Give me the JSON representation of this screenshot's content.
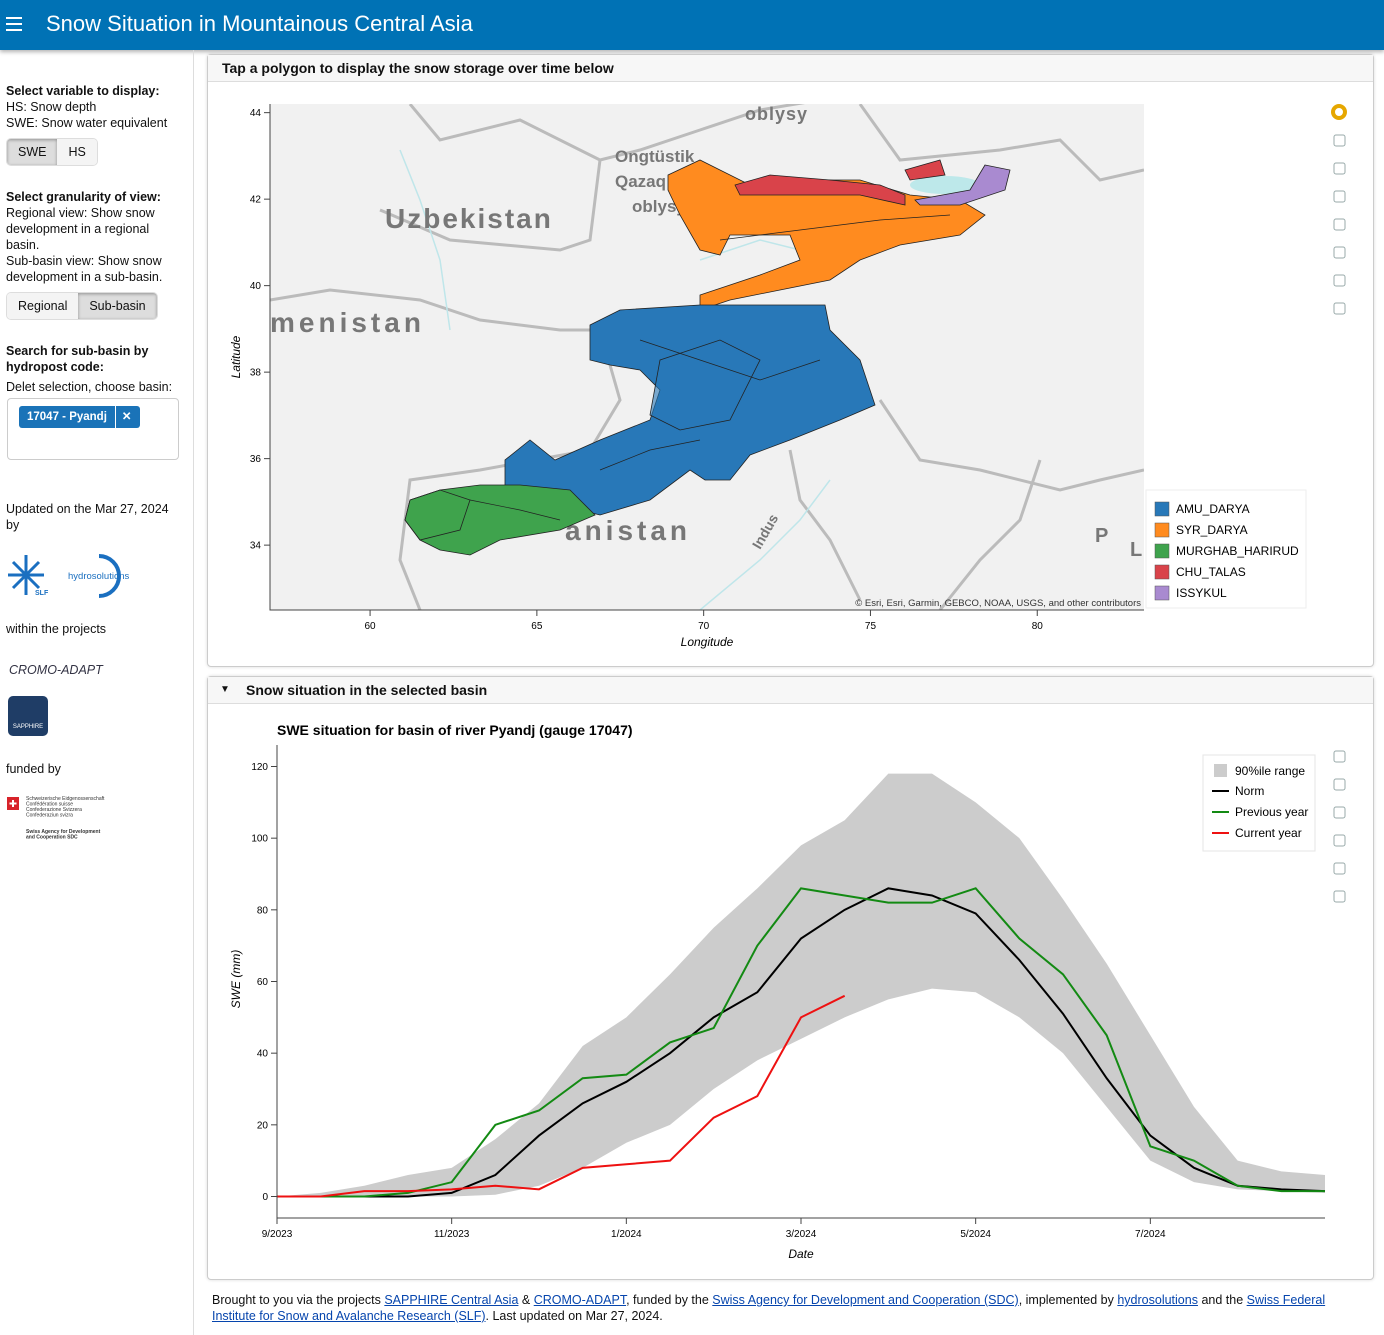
{
  "header": {
    "title": "Snow Situation in Mountainous Central Asia"
  },
  "sidebar": {
    "variable_heading": "Select variable to display:",
    "variable_help": [
      "HS: Snow depth",
      "SWE: Snow water equivalent"
    ],
    "variable_buttons": [
      "SWE",
      "HS"
    ],
    "variable_active": 0,
    "granularity_heading": "Select granularity of view:",
    "granularity_help": [
      "Regional view: Show snow development in a regional basin.",
      "Sub-basin view: Show snow development in a sub-basin."
    ],
    "granularity_buttons": [
      "Regional",
      "Sub-basin"
    ],
    "granularity_active": 1,
    "search_heading": "Search for sub-basin by hydropost code:",
    "search_help": "Delet selection, choose basin:",
    "search_chip": "17047 - Pyandj",
    "updated": "Updated on the Mar 27, 2024 by",
    "slf": "SLF",
    "hydrosolutions": "hydrosolutions",
    "projects_label": "within the projects",
    "cromo": "CROMO-ADAPT",
    "sapphire": "SAPPHIRE",
    "funded_label": "funded by",
    "swiss_lines": [
      "Schweizerische Eidgenossenschaft",
      "Confédération suisse",
      "Confederazione Svizzera",
      "Confederaziun svizra"
    ],
    "sdc_lines": [
      "Swiss Agency for Development",
      "and Cooperation SDC"
    ]
  },
  "map": {
    "panel_title": "Tap a polygon to display the snow storage over time below",
    "xlabel": "Longitude",
    "ylabel": "Latitude",
    "xlim": [
      57,
      83.2
    ],
    "xticks": [
      60,
      65,
      70,
      75,
      80
    ],
    "ylim": [
      32.5,
      44.2
    ],
    "yticks": [
      34,
      36,
      38,
      40,
      42,
      44
    ],
    "basemap_labels": [
      "Uzbekistan",
      "menistan",
      "oblysy",
      "Ongtüstik",
      "Qazaq",
      "oblysy",
      "anistan",
      "Indus",
      "P",
      "L"
    ],
    "attribution": "© Esri, Esri, Garmin, GEBCO, NOAA, USGS, and other contributors",
    "legend": [
      {
        "name": "AMU_DARYA",
        "color": "#2878b8"
      },
      {
        "name": "SYR_DARYA",
        "color": "#ff8b1f"
      },
      {
        "name": "MURGHAB_HARIRUD",
        "color": "#3fa34d"
      },
      {
        "name": "CHU_TALAS",
        "color": "#d9434a"
      },
      {
        "name": "ISSYKUL",
        "color": "#a98ad0"
      }
    ]
  },
  "chart_panel_title": "Snow situation in the selected basin",
  "chart_data": {
    "type": "line",
    "title": "SWE situation for basin of river Pyandj (gauge 17047)",
    "xlabel": "Date",
    "ylabel": "SWE (mm)",
    "x": [
      0,
      0.5,
      1,
      1.5,
      2,
      2.5,
      3,
      3.5,
      4,
      4.5,
      5,
      5.5,
      6,
      6.5,
      7,
      7.5,
      8,
      8.5,
      9,
      9.5,
      10,
      10.5,
      11,
      11.5,
      12
    ],
    "xlim": [
      0,
      12
    ],
    "xticks": [
      {
        "value": 0,
        "label": "9/2023"
      },
      {
        "value": 2,
        "label": "11/2023"
      },
      {
        "value": 4,
        "label": "1/2024"
      },
      {
        "value": 6,
        "label": "3/2024"
      },
      {
        "value": 8,
        "label": "5/2024"
      },
      {
        "value": 10,
        "label": "7/2024"
      }
    ],
    "ylim": [
      -6,
      126
    ],
    "yticks": [
      0,
      20,
      40,
      60,
      80,
      100,
      120
    ],
    "band": {
      "name": "90%ile range",
      "color": "#cccccc",
      "lower": [
        0,
        0,
        0,
        0,
        0,
        0.5,
        3,
        8,
        15,
        20,
        30,
        38,
        44,
        50,
        55,
        58,
        57,
        50,
        40,
        25,
        10,
        4,
        2,
        1.5,
        1
      ],
      "upper": [
        0,
        1,
        3,
        6,
        8,
        16,
        26,
        42,
        50,
        62,
        75,
        86,
        98,
        105,
        118,
        118,
        110,
        100,
        83,
        65,
        45,
        25,
        10,
        7,
        6
      ]
    },
    "series": [
      {
        "name": "Norm",
        "color": "#000000",
        "values": [
          0,
          0,
          0,
          0,
          1,
          6,
          17,
          26,
          32,
          40,
          50,
          57,
          72,
          80,
          86,
          84,
          79,
          66,
          51,
          33,
          17,
          8,
          3,
          2,
          1.5
        ]
      },
      {
        "name": "Previous year",
        "color": "#138a13",
        "values": [
          0,
          0,
          0,
          1,
          4,
          20,
          24,
          33,
          34,
          43,
          47,
          70,
          86,
          84,
          82,
          82,
          86,
          72,
          62,
          45,
          14,
          10,
          3,
          1.5,
          1.5
        ]
      },
      {
        "name": "Current year",
        "color": "#ee1111",
        "values": [
          0,
          0,
          1.5,
          1.5,
          2,
          3,
          2,
          8,
          9,
          10,
          22,
          28,
          50,
          56,
          null,
          null,
          null,
          null,
          null,
          null,
          null,
          null,
          null,
          null,
          null
        ]
      }
    ]
  },
  "footer": {
    "parts": [
      {
        "text": "Brought to you via the projects "
      },
      {
        "text": "SAPPHIRE Central Asia",
        "link": true
      },
      {
        "text": " & "
      },
      {
        "text": "CROMO-ADAPT",
        "link": true
      },
      {
        "text": ", funded by the "
      },
      {
        "text": "Swiss Agency for Development and Cooperation (SDC)",
        "link": true
      },
      {
        "text": ", implemented by "
      },
      {
        "text": "hydrosolutions",
        "link": true
      },
      {
        "text": " and the "
      },
      {
        "text": "Swiss Federal Institute for Snow and Avalanche Research (SLF)",
        "link": true
      },
      {
        "text": ". Last updated on Mar 27, 2024."
      }
    ]
  }
}
